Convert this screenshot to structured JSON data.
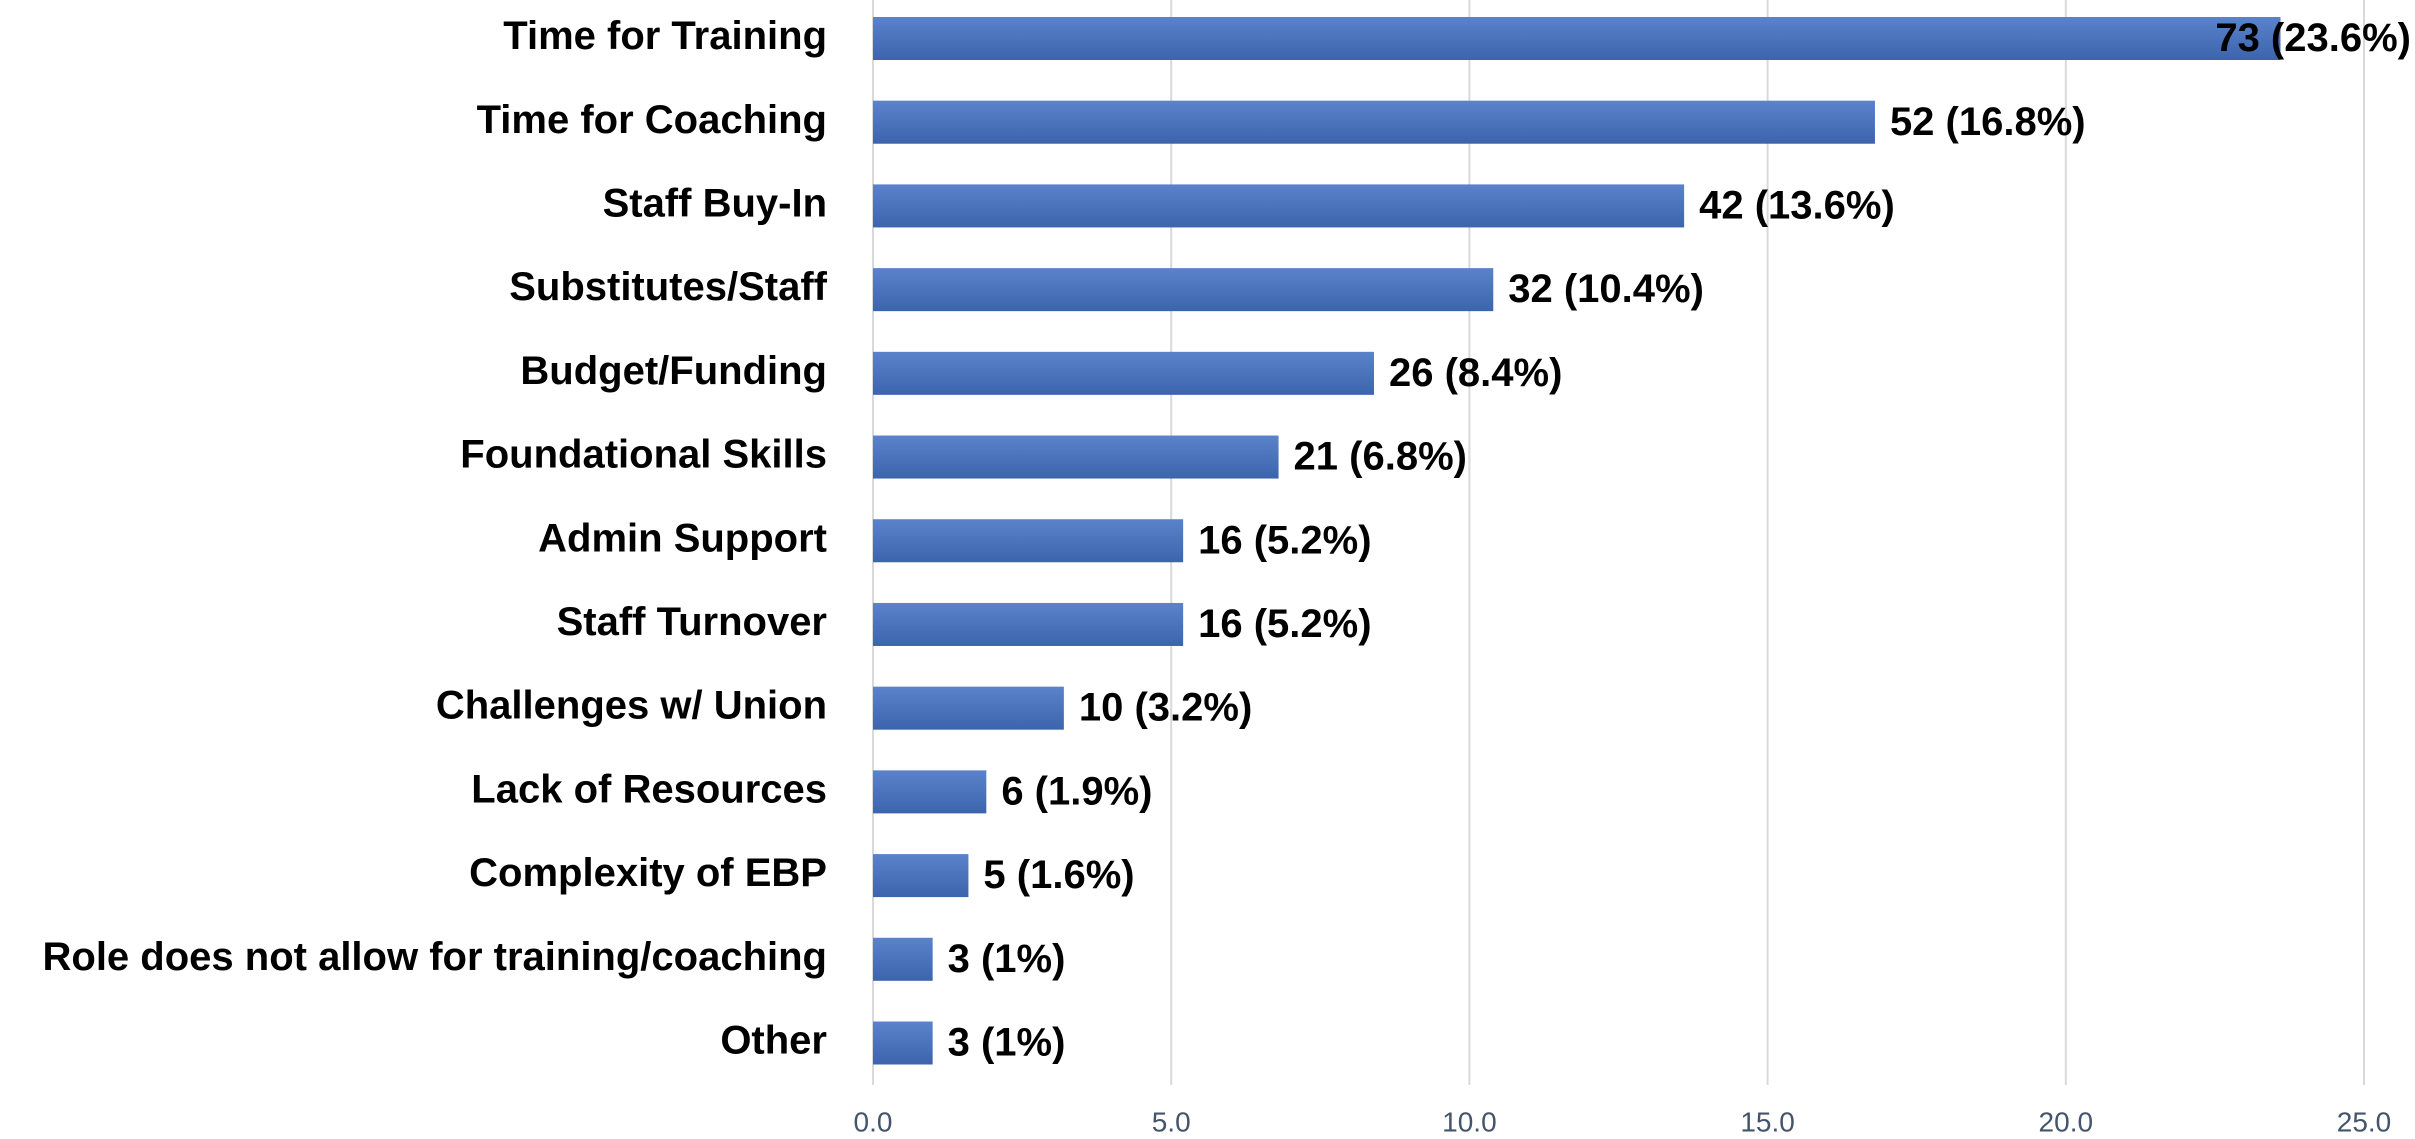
{
  "chart_data": {
    "type": "bar",
    "orientation": "horizontal",
    "color": "#4472c4",
    "grid": true,
    "categories": [
      "Time for Training",
      "Time for Coaching",
      "Staff Buy-In",
      "Substitutes/Staff",
      "Budget/Funding",
      "Foundational Skills",
      "Admin Support",
      "Staff Turnover",
      "Challenges w/ Union",
      "Lack of Resources",
      "Complexity of EBP",
      "Role does not allow for training/coaching",
      "Other"
    ],
    "values": [
      23.6,
      16.8,
      13.6,
      10.4,
      8.4,
      6.8,
      5.2,
      5.2,
      3.2,
      1.9,
      1.6,
      1,
      1
    ],
    "value_labels": [
      "73 (23.6%)",
      "52 (16.8%)",
      "42 (13.6%)",
      "32 (10.4%)",
      "26 (8.4%)",
      "21 (6.8%)",
      "16 (5.2%)",
      "16 (5.2%)",
      "10 (3.2%)",
      "6 (1.9%)",
      "5 (1.6%)",
      "3 (1%)",
      "3 (1%)"
    ],
    "xlim": [
      0,
      25
    ],
    "xticks": [
      {
        "value": 0,
        "label": "0.0"
      },
      {
        "value": 5,
        "label": "5.0"
      },
      {
        "value": 10,
        "label": "10.0"
      },
      {
        "value": 15,
        "label": "15.0"
      },
      {
        "value": 20,
        "label": "20.0"
      },
      {
        "value": 25,
        "label": "25.0"
      }
    ]
  }
}
